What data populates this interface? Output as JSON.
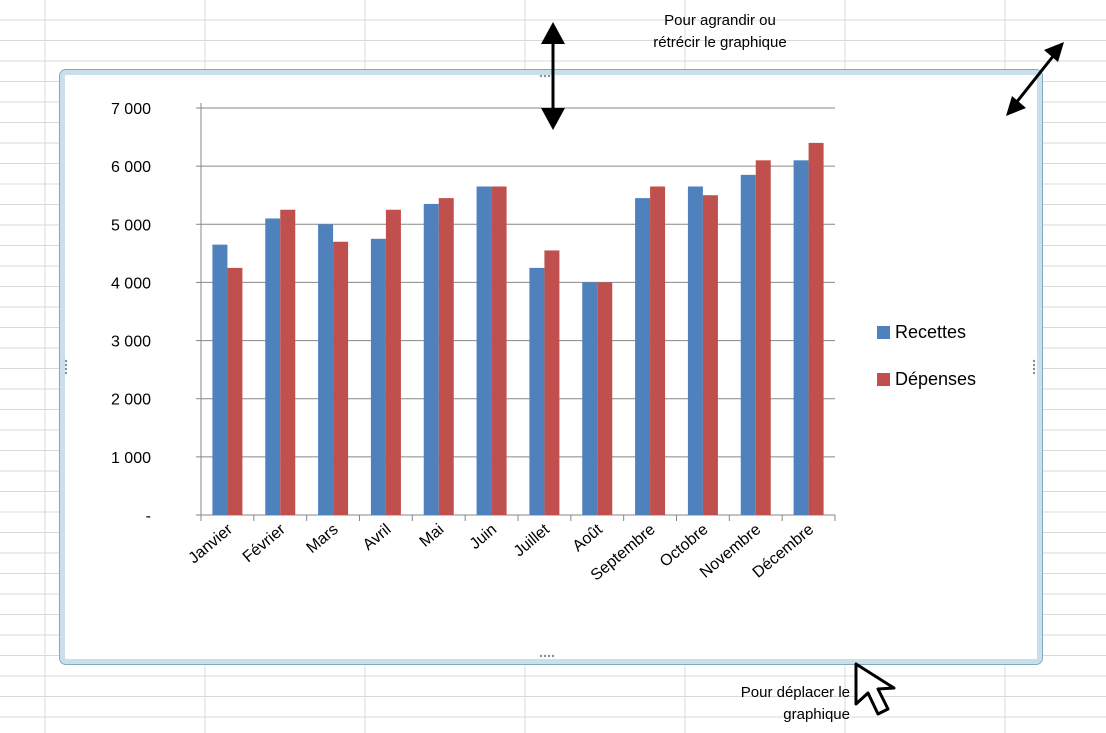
{
  "annotations": {
    "resize_note": "Pour agrandir ou\nrétrécir le graphique",
    "move_note": "Pour déplacer le\ngraphique"
  },
  "colors": {
    "recettes": "#4f81bd",
    "depenses": "#c0504d",
    "grid": "#878787",
    "frame": "#c9e0ea"
  },
  "chart_data": {
    "type": "bar",
    "title": "",
    "xlabel": "",
    "ylabel": "",
    "ylim": [
      0,
      7000
    ],
    "yticks": [
      0,
      1000,
      2000,
      3000,
      4000,
      5000,
      6000,
      7000
    ],
    "ytick_labels": [
      "-",
      "1 000",
      "2 000",
      "3 000",
      "4 000",
      "5 000",
      "6 000",
      "7 000"
    ],
    "grid": true,
    "legend_position": "right",
    "categories": [
      "Janvier",
      "Février",
      "Mars",
      "Avril",
      "Mai",
      "Juin",
      "Juillet",
      "Août",
      "Septembre",
      "Octobre",
      "Novembre",
      "Décembre"
    ],
    "series": [
      {
        "name": "Recettes",
        "values": [
          4650,
          5100,
          5000,
          4750,
          5350,
          5650,
          4250,
          4000,
          5450,
          5650,
          5850,
          6100
        ]
      },
      {
        "name": "Dépenses",
        "values": [
          4250,
          5250,
          4700,
          5250,
          5450,
          5650,
          4550,
          4000,
          5650,
          5500,
          6100,
          6400
        ]
      }
    ]
  }
}
